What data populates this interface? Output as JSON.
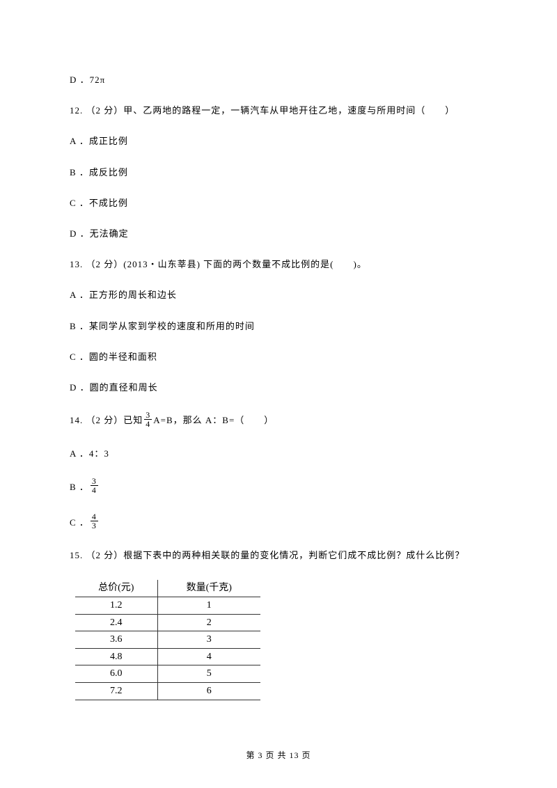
{
  "q11": {
    "optD": "D ．72π"
  },
  "q12": {
    "stem": "12. （2 分）甲、乙两地的路程一定，一辆汽车从甲地开往乙地，速度与所用时间（　　）",
    "optA": "A ．成正比例",
    "optB": "B ．成反比例",
    "optC": "C ．不成比例",
    "optD": "D ．无法确定"
  },
  "q13": {
    "stem": "13. （2 分）(2013・山东莘县) 下面的两个数量不成比例的是(　　)。",
    "optA": "A ．正方形的周长和边长",
    "optB": "B ．某同学从家到学校的速度和所用的时间",
    "optC": "C ．圆的半径和面积",
    "optD": "D ．圆的直径和周长"
  },
  "q14": {
    "pre": "14. （2 分）已知 ",
    "f1n": "3",
    "f1d": "4",
    "post": " A=B，那么 A：B=（　　）",
    "optA": "A ．4：3",
    "optB_pre": "B ．",
    "f2n": "3",
    "f2d": "4",
    "optC_pre": "C ．",
    "f3n": "4",
    "f3d": "3"
  },
  "q15": {
    "stem": "15. （2 分）根据下表中的两种相关联的量的变化情况，判断它们成不成比例？成什么比例？",
    "header_price": "总价(元)",
    "header_qty": "数量(千克)",
    "rows": [
      [
        "1.2",
        "1"
      ],
      [
        "2.4",
        "2"
      ],
      [
        "3.6",
        "3"
      ],
      [
        "4.8",
        "4"
      ],
      [
        "6.0",
        "5"
      ],
      [
        "7.2",
        "6"
      ]
    ]
  },
  "footer": "第 3 页 共 13 页"
}
